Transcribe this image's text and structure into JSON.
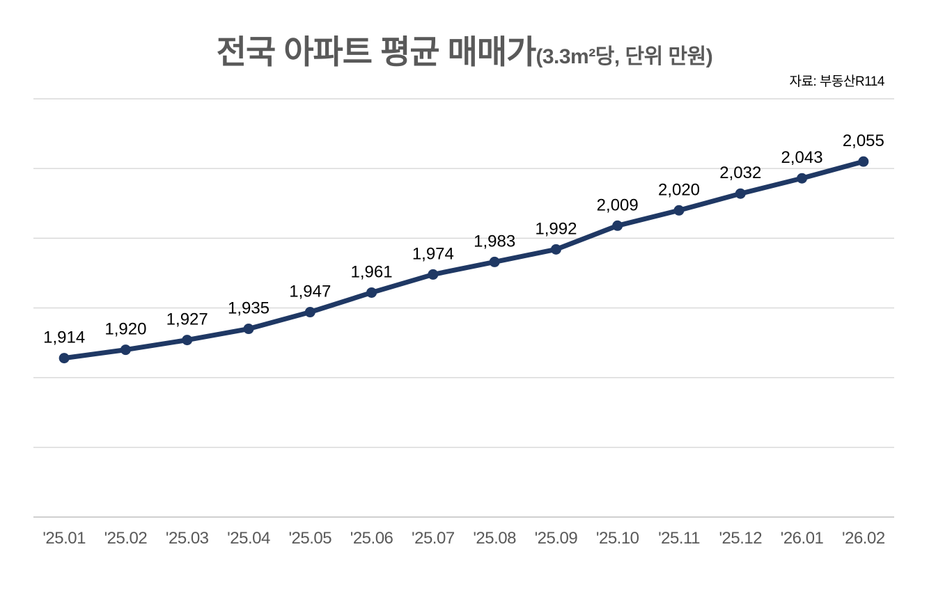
{
  "header": {
    "title_main": "전국 아파트 평균 매매가",
    "title_sub": "(3.3m²당, 단위 만원)",
    "source": "자료: 부동산R114"
  },
  "chart_data": {
    "type": "line",
    "title": "전국 아파트 평균 매매가(3.3m²당, 단위 만원)",
    "source": "자료: 부동산R114",
    "categories": [
      "'25.01",
      "'25.02",
      "'25.03",
      "'25.04",
      "'25.05",
      "'25.06",
      "'25.07",
      "'25.08",
      "'25.09",
      "'25.10",
      "'25.11",
      "'25.12",
      "'26.01",
      "'26.02"
    ],
    "values": [
      1914,
      1920,
      1927,
      1935,
      1947,
      1961,
      1974,
      1983,
      1992,
      2009,
      2020,
      2032,
      2043,
      2055
    ],
    "point_labels": [
      "1,914",
      "1,920",
      "1,927",
      "1,935",
      "1,947",
      "1,961",
      "1,974",
      "1,983",
      "1,992",
      "2,009",
      "2,020",
      "2,032",
      "2,043",
      "2,055"
    ],
    "ylim": [
      1800,
      2100
    ],
    "grid_step": 50,
    "grid": true,
    "legend": false,
    "data_labels": true,
    "colors": {
      "line": "#1f3864",
      "marker": "#1f3864",
      "grid": "#d9d9d9",
      "axis": "#bfbfbf",
      "title": "#595959",
      "tick": "#595959",
      "label": "#000000"
    }
  }
}
